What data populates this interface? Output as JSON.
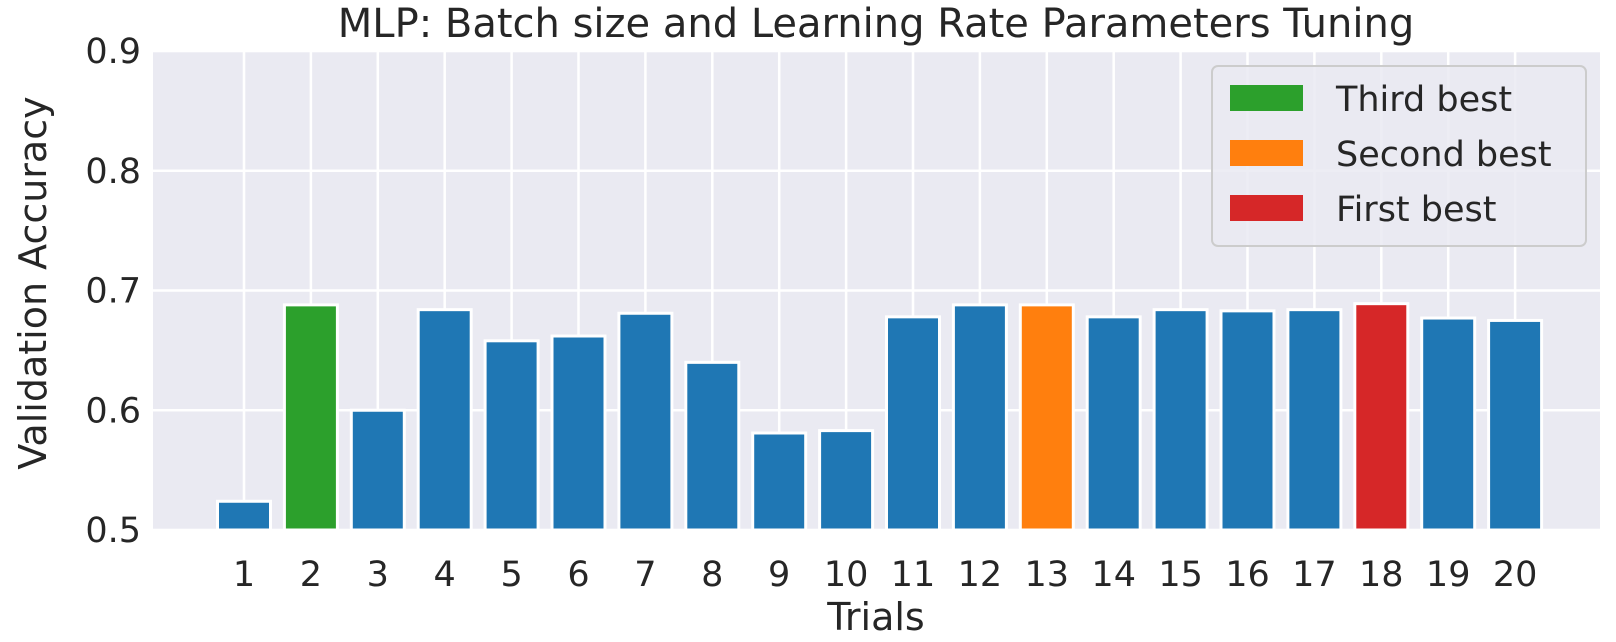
{
  "chart_data": {
    "type": "bar",
    "title": "MLP: Batch size and Learning Rate Parameters Tuning",
    "xlabel": "Trials",
    "ylabel": "Validation Accuracy",
    "categories": [
      "1",
      "2",
      "3",
      "4",
      "5",
      "6",
      "7",
      "8",
      "9",
      "10",
      "11",
      "12",
      "13",
      "14",
      "15",
      "16",
      "17",
      "18",
      "19",
      "20"
    ],
    "values": [
      0.524,
      0.688,
      0.6,
      0.684,
      0.658,
      0.662,
      0.681,
      0.64,
      0.581,
      0.583,
      0.678,
      0.688,
      0.688,
      0.678,
      0.684,
      0.683,
      0.684,
      0.689,
      0.677,
      0.675
    ],
    "bar_colors": [
      "#1f77b4",
      "#2ca02c",
      "#1f77b4",
      "#1f77b4",
      "#1f77b4",
      "#1f77b4",
      "#1f77b4",
      "#1f77b4",
      "#1f77b4",
      "#1f77b4",
      "#1f77b4",
      "#1f77b4",
      "#ff7f0e",
      "#1f77b4",
      "#1f77b4",
      "#1f77b4",
      "#1f77b4",
      "#d62728",
      "#1f77b4",
      "#1f77b4"
    ],
    "ylim": [
      0.5,
      0.9
    ],
    "yticks": [
      0.5,
      0.6,
      0.7,
      0.8,
      0.9
    ],
    "ytick_labels": [
      "0.5",
      "0.6",
      "0.7",
      "0.8",
      "0.9"
    ],
    "grid": true,
    "legend": {
      "position": "top-right",
      "entries": [
        {
          "label": "Third best",
          "color": "#2ca02c"
        },
        {
          "label": "Second best",
          "color": "#ff7f0e"
        },
        {
          "label": "First best",
          "color": "#d62728"
        }
      ]
    },
    "colors": {
      "background": "#eaeaf2",
      "grid": "#ffffff",
      "default_bar": "#1f77b4"
    }
  }
}
